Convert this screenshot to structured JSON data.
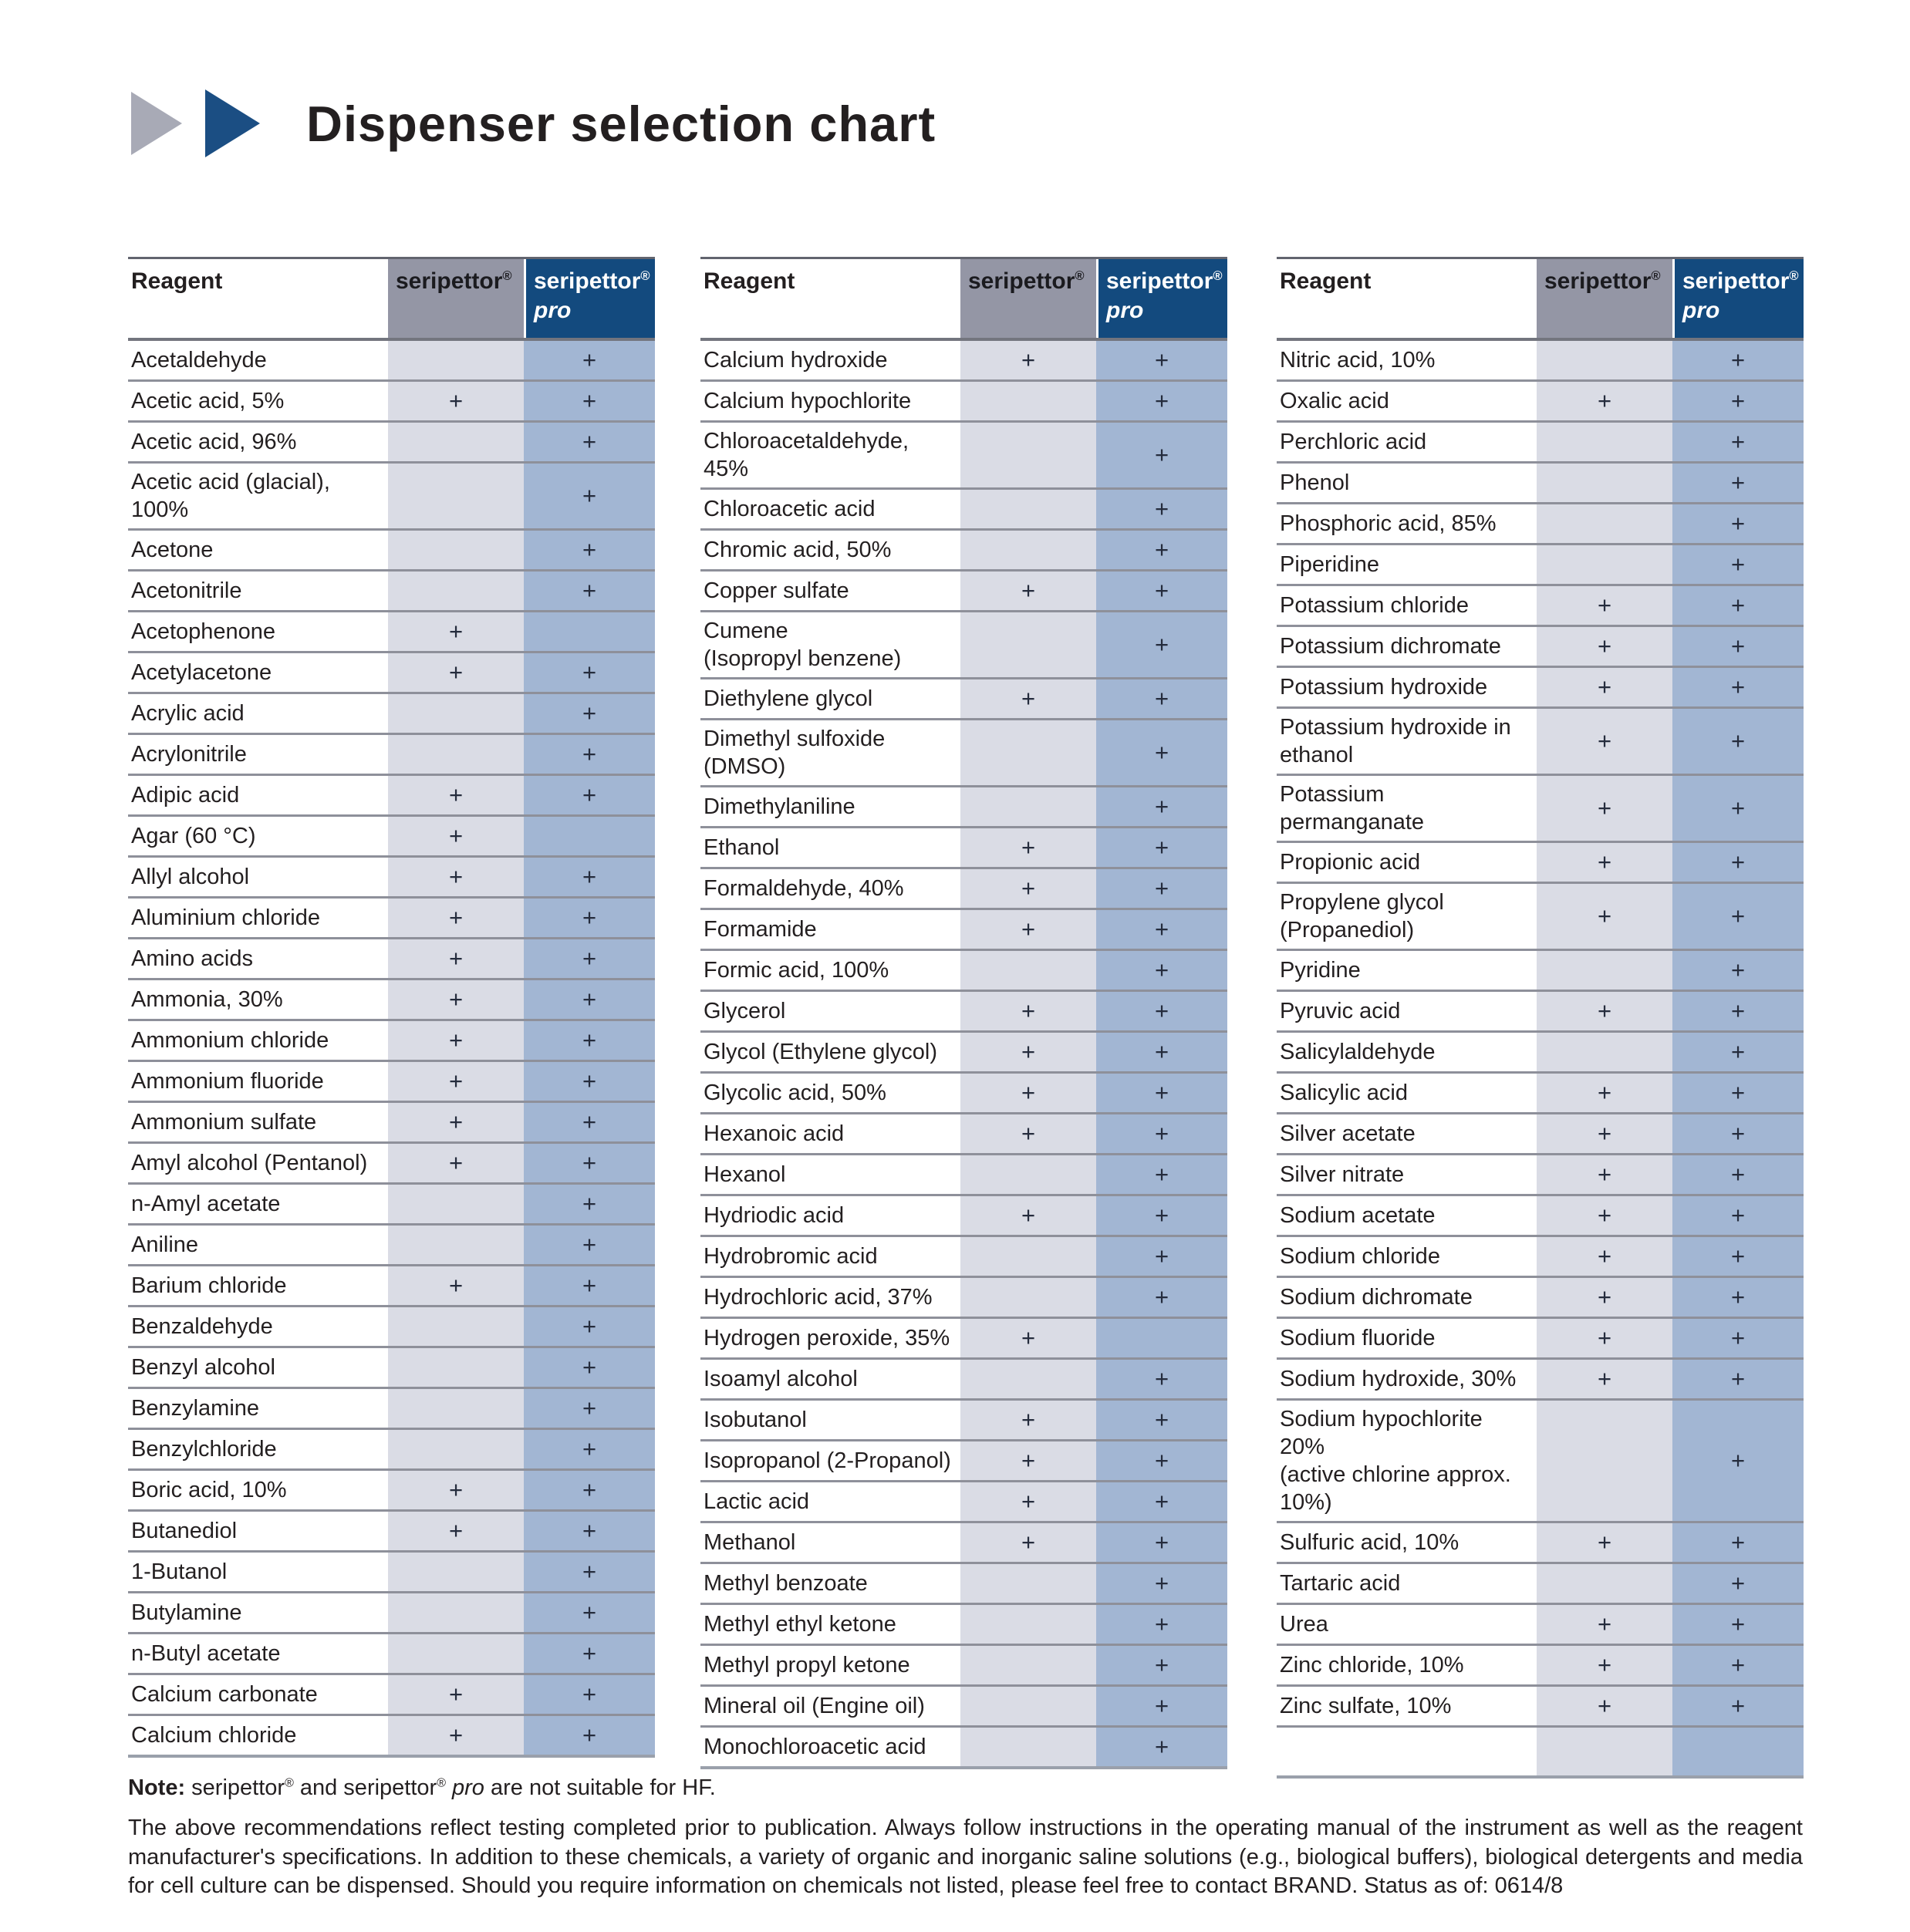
{
  "title": "Dispenser selection chart",
  "columns": {
    "reagent": "Reagent",
    "seripettor": "seripettor®",
    "pro_brand": "seripettor®",
    "pro_variant": "pro"
  },
  "colors": {
    "header_gray": "#9496a5",
    "header_blue": "#134a7e",
    "body_gray": "#dadce5",
    "body_blue": "#a2b6d3",
    "chevron_gray": "#a8aab6",
    "chevron_blue": "#1b4e83"
  },
  "tables": [
    {
      "rows": [
        [
          "Acetaldehyde",
          "",
          "+"
        ],
        [
          "Acetic acid, 5%",
          "+",
          "+"
        ],
        [
          "Acetic acid, 96%",
          "",
          "+"
        ],
        [
          "Acetic acid (glacial), 100%",
          "",
          "+"
        ],
        [
          "Acetone",
          "",
          "+"
        ],
        [
          "Acetonitrile",
          "",
          "+"
        ],
        [
          "Acetophenone",
          "+",
          ""
        ],
        [
          "Acetylacetone",
          "+",
          "+"
        ],
        [
          "Acrylic acid",
          "",
          "+"
        ],
        [
          "Acrylonitrile",
          "",
          "+"
        ],
        [
          "Adipic acid",
          "+",
          "+"
        ],
        [
          "Agar (60 °C)",
          "+",
          ""
        ],
        [
          "Allyl alcohol",
          "+",
          "+"
        ],
        [
          "Aluminium chloride",
          "+",
          "+"
        ],
        [
          "Amino acids",
          "+",
          "+"
        ],
        [
          "Ammonia, 30%",
          "+",
          "+"
        ],
        [
          "Ammonium chloride",
          "+",
          "+"
        ],
        [
          "Ammonium fluoride",
          "+",
          "+"
        ],
        [
          "Ammonium sulfate",
          "+",
          "+"
        ],
        [
          "Amyl alcohol (Pentanol)",
          "+",
          "+"
        ],
        [
          "n-Amyl acetate",
          "",
          "+"
        ],
        [
          "Aniline",
          "",
          "+"
        ],
        [
          "Barium chloride",
          "+",
          "+"
        ],
        [
          "Benzaldehyde",
          "",
          "+"
        ],
        [
          "Benzyl alcohol",
          "",
          "+"
        ],
        [
          "Benzylamine",
          "",
          "+"
        ],
        [
          "Benzylchloride",
          "",
          "+"
        ],
        [
          "Boric acid, 10%",
          "+",
          "+"
        ],
        [
          "Butanediol",
          "+",
          "+"
        ],
        [
          "1-Butanol",
          "",
          "+"
        ],
        [
          "Butylamine",
          "",
          "+"
        ],
        [
          "n-Butyl acetate",
          "",
          "+"
        ],
        [
          "Calcium carbonate",
          "+",
          "+"
        ],
        [
          "Calcium chloride",
          "+",
          "+"
        ]
      ]
    },
    {
      "rows": [
        [
          "Calcium hydroxide",
          "+",
          "+"
        ],
        [
          "Calcium hypochlorite",
          "",
          "+"
        ],
        [
          "Chloroacetaldehyde, 45%",
          "",
          "+"
        ],
        [
          "Chloroacetic acid",
          "",
          "+"
        ],
        [
          "Chromic acid, 50%",
          "",
          "+"
        ],
        [
          "Copper sulfate",
          "+",
          "+"
        ],
        [
          "Cumene\n(Isopropyl benzene)",
          "",
          "+"
        ],
        [
          "Diethylene glycol",
          "+",
          "+"
        ],
        [
          "Dimethyl sulfoxide (DMSO)",
          "",
          "+"
        ],
        [
          "Dimethylaniline",
          "",
          "+"
        ],
        [
          "Ethanol",
          "+",
          "+"
        ],
        [
          "Formaldehyde, 40%",
          "+",
          "+"
        ],
        [
          "Formamide",
          "+",
          "+"
        ],
        [
          "Formic acid, 100%",
          "",
          "+"
        ],
        [
          "Glycerol",
          "+",
          "+"
        ],
        [
          "Glycol (Ethylene glycol)",
          "+",
          "+"
        ],
        [
          "Glycolic acid, 50%",
          "+",
          "+"
        ],
        [
          "Hexanoic acid",
          "+",
          "+"
        ],
        [
          "Hexanol",
          "",
          "+"
        ],
        [
          "Hydriodic acid",
          "+",
          "+"
        ],
        [
          "Hydrobromic acid",
          "",
          "+"
        ],
        [
          "Hydrochloric acid, 37%",
          "",
          "+"
        ],
        [
          "Hydrogen peroxide, 35%",
          "+",
          ""
        ],
        [
          "Isoamyl alcohol",
          "",
          "+"
        ],
        [
          "Isobutanol",
          "+",
          "+"
        ],
        [
          "Isopropanol (2-Propanol)",
          "+",
          "+"
        ],
        [
          "Lactic acid",
          "+",
          "+"
        ],
        [
          "Methanol",
          "+",
          "+"
        ],
        [
          "Methyl benzoate",
          "",
          "+"
        ],
        [
          "Methyl ethyl ketone",
          "",
          "+"
        ],
        [
          "Methyl propyl ketone",
          "",
          "+"
        ],
        [
          "Mineral oil (Engine oil)",
          "",
          "+"
        ],
        [
          "Monochloroacetic acid",
          "",
          "+"
        ]
      ]
    },
    {
      "rows": [
        [
          "Nitric acid, 10%",
          "",
          "+"
        ],
        [
          "Oxalic acid",
          "+",
          "+"
        ],
        [
          "Perchloric acid",
          "",
          "+"
        ],
        [
          "Phenol",
          "",
          "+"
        ],
        [
          "Phosphoric acid, 85%",
          "",
          "+"
        ],
        [
          "Piperidine",
          "",
          "+"
        ],
        [
          "Potassium chloride",
          "+",
          "+"
        ],
        [
          "Potassium dichromate",
          "+",
          "+"
        ],
        [
          "Potassium hydroxide",
          "+",
          "+"
        ],
        [
          "Potassium hydroxide in\nethanol",
          "+",
          "+"
        ],
        [
          "Potassium permanganate",
          "+",
          "+"
        ],
        [
          "Propionic acid",
          "+",
          "+"
        ],
        [
          "Propylene glycol\n(Propanediol)",
          "+",
          "+"
        ],
        [
          "Pyridine",
          "",
          "+"
        ],
        [
          "Pyruvic acid",
          "+",
          "+"
        ],
        [
          "Salicylaldehyde",
          "",
          "+"
        ],
        [
          "Salicylic acid",
          "+",
          "+"
        ],
        [
          "Silver acetate",
          "+",
          "+"
        ],
        [
          "Silver nitrate",
          "+",
          "+"
        ],
        [
          "Sodium acetate",
          "+",
          "+"
        ],
        [
          "Sodium chloride",
          "+",
          "+"
        ],
        [
          "Sodium dichromate",
          "+",
          "+"
        ],
        [
          "Sodium fluoride",
          "+",
          "+"
        ],
        [
          "Sodium hydroxide, 30%",
          "+",
          "+"
        ],
        [
          "Sodium hypochlorite 20%\n(active chlorine approx. 10%)",
          "",
          "+"
        ],
        [
          "Sulfuric acid, 10%",
          "+",
          "+"
        ],
        [
          "Tartaric acid",
          "",
          "+"
        ],
        [
          "Urea",
          "+",
          "+"
        ],
        [
          "Zinc chloride, 10%",
          "+",
          "+"
        ],
        [
          "Zinc sulfate, 10%",
          "+",
          "+"
        ],
        [
          "",
          "",
          ""
        ]
      ]
    }
  ],
  "note": {
    "label": "Note:",
    "parts": [
      {
        "text": " seripettor® and seripettor® "
      },
      {
        "text": "pro",
        "italic": true
      },
      {
        "text": " are not suitable for HF."
      }
    ]
  },
  "footer": "The above recommendations reflect testing completed prior to publication. Always follow instructions in the operating manual of the instrument as well as the reagent manufacturer's specifications. In addition to these chemicals, a variety of organic and inorganic saline solutions (e.g., biological buffers), biological detergents and media for cell culture can be dispensed. Should you require information on chemicals not listed, please feel free to contact BRAND. Status as of: 0614/8"
}
